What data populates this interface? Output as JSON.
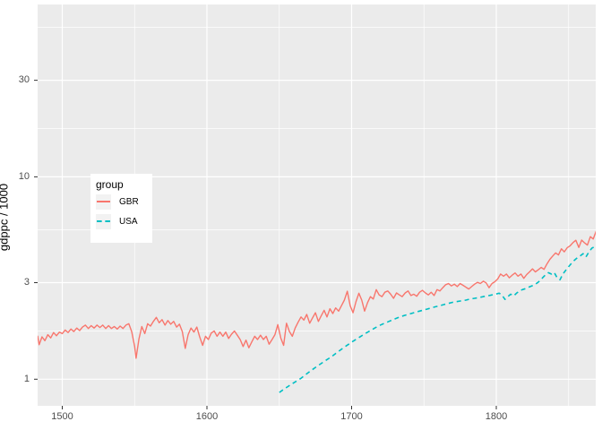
{
  "figure": {
    "background": "#FFFFFF",
    "panel_background": "#EBEBEB",
    "gridline_color": "#FFFFFF",
    "tick_mark_color": "#333333",
    "tick_label_color": "#4D4D4D"
  },
  "chart_data": {
    "type": "line",
    "title": "",
    "xlabel": "",
    "ylabel": "gdppc / 1000",
    "y_scale": "log10",
    "x_ticks": [
      1500,
      1600,
      1700,
      1800
    ],
    "x_tick_labels": [
      "1500",
      "1600",
      "1700",
      "1800"
    ],
    "x_minor_ticks": [
      1550,
      1650,
      1750,
      1850
    ],
    "y_ticks": [
      1,
      3,
      10,
      30
    ],
    "y_tick_labels": [
      "1",
      "3",
      "10",
      "30"
    ],
    "y_minor_ticks": [
      1.73,
      5.48,
      17.3,
      54.8
    ],
    "x_range_shown": [
      1483,
      1869
    ],
    "y_range_shown": [
      0.72,
      72
    ],
    "grid": true,
    "legend": {
      "title": "group",
      "position": "inside-upper-left",
      "entries": [
        {
          "label": "GBR",
          "color": "#F8766D",
          "linetype": "solid"
        },
        {
          "label": "USA",
          "color": "#00BFC4",
          "linetype": "dashed"
        }
      ]
    },
    "series": [
      {
        "name": "GBR",
        "color": "#F8766D",
        "linetype": "solid",
        "points": [
          [
            1483,
            1.64
          ],
          [
            1484,
            1.48
          ],
          [
            1486,
            1.62
          ],
          [
            1488,
            1.55
          ],
          [
            1490,
            1.66
          ],
          [
            1492,
            1.6
          ],
          [
            1494,
            1.7
          ],
          [
            1496,
            1.64
          ],
          [
            1498,
            1.71
          ],
          [
            1500,
            1.68
          ],
          [
            1502,
            1.75
          ],
          [
            1504,
            1.7
          ],
          [
            1506,
            1.77
          ],
          [
            1508,
            1.72
          ],
          [
            1510,
            1.79
          ],
          [
            1512,
            1.74
          ],
          [
            1514,
            1.81
          ],
          [
            1516,
            1.85
          ],
          [
            1518,
            1.78
          ],
          [
            1520,
            1.84
          ],
          [
            1522,
            1.79
          ],
          [
            1524,
            1.85
          ],
          [
            1526,
            1.8
          ],
          [
            1528,
            1.85
          ],
          [
            1530,
            1.78
          ],
          [
            1532,
            1.84
          ],
          [
            1534,
            1.78
          ],
          [
            1536,
            1.82
          ],
          [
            1538,
            1.77
          ],
          [
            1540,
            1.83
          ],
          [
            1542,
            1.78
          ],
          [
            1544,
            1.85
          ],
          [
            1546,
            1.88
          ],
          [
            1548,
            1.72
          ],
          [
            1550,
            1.45
          ],
          [
            1551,
            1.27
          ],
          [
            1553,
            1.58
          ],
          [
            1555,
            1.82
          ],
          [
            1557,
            1.68
          ],
          [
            1559,
            1.88
          ],
          [
            1561,
            1.83
          ],
          [
            1563,
            1.93
          ],
          [
            1565,
            2.02
          ],
          [
            1567,
            1.9
          ],
          [
            1569,
            1.97
          ],
          [
            1571,
            1.85
          ],
          [
            1573,
            1.95
          ],
          [
            1575,
            1.87
          ],
          [
            1577,
            1.93
          ],
          [
            1579,
            1.81
          ],
          [
            1581,
            1.87
          ],
          [
            1583,
            1.72
          ],
          [
            1585,
            1.42
          ],
          [
            1587,
            1.66
          ],
          [
            1589,
            1.79
          ],
          [
            1591,
            1.71
          ],
          [
            1593,
            1.81
          ],
          [
            1595,
            1.62
          ],
          [
            1597,
            1.47
          ],
          [
            1599,
            1.63
          ],
          [
            1601,
            1.57
          ],
          [
            1603,
            1.69
          ],
          [
            1605,
            1.73
          ],
          [
            1607,
            1.63
          ],
          [
            1609,
            1.71
          ],
          [
            1611,
            1.63
          ],
          [
            1613,
            1.71
          ],
          [
            1615,
            1.59
          ],
          [
            1617,
            1.67
          ],
          [
            1619,
            1.73
          ],
          [
            1621,
            1.65
          ],
          [
            1623,
            1.57
          ],
          [
            1625,
            1.45
          ],
          [
            1627,
            1.56
          ],
          [
            1629,
            1.43
          ],
          [
            1631,
            1.53
          ],
          [
            1633,
            1.63
          ],
          [
            1635,
            1.57
          ],
          [
            1637,
            1.65
          ],
          [
            1639,
            1.57
          ],
          [
            1641,
            1.63
          ],
          [
            1643,
            1.49
          ],
          [
            1645,
            1.57
          ],
          [
            1647,
            1.66
          ],
          [
            1649,
            1.86
          ],
          [
            1651,
            1.6
          ],
          [
            1653,
            1.47
          ],
          [
            1655,
            1.89
          ],
          [
            1657,
            1.72
          ],
          [
            1659,
            1.63
          ],
          [
            1661,
            1.79
          ],
          [
            1663,
            1.91
          ],
          [
            1665,
            2.03
          ],
          [
            1667,
            1.96
          ],
          [
            1669,
            2.09
          ],
          [
            1671,
            1.89
          ],
          [
            1673,
            2.01
          ],
          [
            1675,
            2.13
          ],
          [
            1677,
            1.93
          ],
          [
            1679,
            2.06
          ],
          [
            1681,
            2.19
          ],
          [
            1683,
            2.03
          ],
          [
            1685,
            2.23
          ],
          [
            1687,
            2.11
          ],
          [
            1689,
            2.25
          ],
          [
            1691,
            2.17
          ],
          [
            1693,
            2.31
          ],
          [
            1695,
            2.46
          ],
          [
            1697,
            2.72
          ],
          [
            1699,
            2.31
          ],
          [
            1701,
            2.13
          ],
          [
            1703,
            2.41
          ],
          [
            1705,
            2.66
          ],
          [
            1707,
            2.46
          ],
          [
            1709,
            2.17
          ],
          [
            1711,
            2.39
          ],
          [
            1713,
            2.56
          ],
          [
            1715,
            2.49
          ],
          [
            1717,
            2.77
          ],
          [
            1719,
            2.61
          ],
          [
            1721,
            2.56
          ],
          [
            1723,
            2.69
          ],
          [
            1725,
            2.73
          ],
          [
            1727,
            2.63
          ],
          [
            1729,
            2.51
          ],
          [
            1731,
            2.67
          ],
          [
            1733,
            2.61
          ],
          [
            1735,
            2.56
          ],
          [
            1737,
            2.67
          ],
          [
            1739,
            2.73
          ],
          [
            1741,
            2.59
          ],
          [
            1743,
            2.63
          ],
          [
            1745,
            2.57
          ],
          [
            1747,
            2.69
          ],
          [
            1749,
            2.75
          ],
          [
            1751,
            2.67
          ],
          [
            1753,
            2.61
          ],
          [
            1755,
            2.69
          ],
          [
            1757,
            2.59
          ],
          [
            1759,
            2.77
          ],
          [
            1761,
            2.73
          ],
          [
            1763,
            2.83
          ],
          [
            1765,
            2.93
          ],
          [
            1767,
            2.97
          ],
          [
            1769,
            2.89
          ],
          [
            1771,
            2.95
          ],
          [
            1773,
            2.87
          ],
          [
            1775,
            2.97
          ],
          [
            1777,
            2.91
          ],
          [
            1779,
            2.85
          ],
          [
            1781,
            2.79
          ],
          [
            1783,
            2.87
          ],
          [
            1785,
            2.95
          ],
          [
            1787,
            3.01
          ],
          [
            1789,
            2.97
          ],
          [
            1791,
            3.05
          ],
          [
            1793,
            2.99
          ],
          [
            1795,
            2.83
          ],
          [
            1797,
            2.97
          ],
          [
            1799,
            3.03
          ],
          [
            1801,
            3.13
          ],
          [
            1803,
            3.31
          ],
          [
            1805,
            3.23
          ],
          [
            1807,
            3.31
          ],
          [
            1809,
            3.17
          ],
          [
            1811,
            3.27
          ],
          [
            1813,
            3.35
          ],
          [
            1815,
            3.23
          ],
          [
            1817,
            3.31
          ],
          [
            1819,
            3.15
          ],
          [
            1821,
            3.29
          ],
          [
            1823,
            3.39
          ],
          [
            1825,
            3.51
          ],
          [
            1827,
            3.39
          ],
          [
            1829,
            3.47
          ],
          [
            1831,
            3.57
          ],
          [
            1833,
            3.49
          ],
          [
            1835,
            3.71
          ],
          [
            1837,
            3.91
          ],
          [
            1839,
            4.06
          ],
          [
            1841,
            4.21
          ],
          [
            1843,
            4.11
          ],
          [
            1845,
            4.41
          ],
          [
            1847,
            4.26
          ],
          [
            1849,
            4.46
          ],
          [
            1851,
            4.56
          ],
          [
            1853,
            4.73
          ],
          [
            1855,
            4.86
          ],
          [
            1857,
            4.48
          ],
          [
            1859,
            4.87
          ],
          [
            1861,
            4.72
          ],
          [
            1863,
            4.6
          ],
          [
            1865,
            5.06
          ],
          [
            1867,
            4.93
          ],
          [
            1869,
            5.38
          ],
          [
            1870,
            5.52
          ]
        ]
      },
      {
        "name": "USA",
        "color": "#00BFC4",
        "linetype": "dashed",
        "points": [
          [
            1650,
            0.86
          ],
          [
            1653,
            0.89
          ],
          [
            1656,
            0.92
          ],
          [
            1659,
            0.95
          ],
          [
            1662,
            0.98
          ],
          [
            1665,
            1.01
          ],
          [
            1668,
            1.05
          ],
          [
            1671,
            1.09
          ],
          [
            1674,
            1.13
          ],
          [
            1677,
            1.17
          ],
          [
            1680,
            1.21
          ],
          [
            1683,
            1.25
          ],
          [
            1686,
            1.29
          ],
          [
            1689,
            1.34
          ],
          [
            1692,
            1.39
          ],
          [
            1695,
            1.44
          ],
          [
            1698,
            1.49
          ],
          [
            1701,
            1.54
          ],
          [
            1704,
            1.59
          ],
          [
            1707,
            1.64
          ],
          [
            1710,
            1.69
          ],
          [
            1713,
            1.74
          ],
          [
            1716,
            1.79
          ],
          [
            1719,
            1.84
          ],
          [
            1722,
            1.88
          ],
          [
            1725,
            1.92
          ],
          [
            1728,
            1.96
          ],
          [
            1731,
            2.0
          ],
          [
            1734,
            2.04
          ],
          [
            1737,
            2.07
          ],
          [
            1740,
            2.1
          ],
          [
            1743,
            2.13
          ],
          [
            1746,
            2.16
          ],
          [
            1749,
            2.19
          ],
          [
            1752,
            2.22
          ],
          [
            1755,
            2.25
          ],
          [
            1758,
            2.28
          ],
          [
            1761,
            2.31
          ],
          [
            1764,
            2.34
          ],
          [
            1767,
            2.37
          ],
          [
            1770,
            2.4
          ],
          [
            1773,
            2.42
          ],
          [
            1776,
            2.44
          ],
          [
            1779,
            2.46
          ],
          [
            1782,
            2.49
          ],
          [
            1785,
            2.51
          ],
          [
            1788,
            2.53
          ],
          [
            1791,
            2.56
          ],
          [
            1794,
            2.58
          ],
          [
            1797,
            2.61
          ],
          [
            1800,
            2.64
          ],
          [
            1802,
            2.66
          ],
          [
            1804,
            2.6
          ],
          [
            1806,
            2.48
          ],
          [
            1808,
            2.56
          ],
          [
            1810,
            2.63
          ],
          [
            1812,
            2.58
          ],
          [
            1814,
            2.66
          ],
          [
            1816,
            2.73
          ],
          [
            1818,
            2.77
          ],
          [
            1820,
            2.8
          ],
          [
            1822,
            2.84
          ],
          [
            1824,
            2.88
          ],
          [
            1826,
            2.92
          ],
          [
            1828,
            2.98
          ],
          [
            1830,
            3.06
          ],
          [
            1832,
            3.17
          ],
          [
            1834,
            3.28
          ],
          [
            1836,
            3.36
          ],
          [
            1838,
            3.31
          ],
          [
            1840,
            3.37
          ],
          [
            1842,
            3.18
          ],
          [
            1844,
            3.1
          ],
          [
            1846,
            3.31
          ],
          [
            1848,
            3.45
          ],
          [
            1850,
            3.6
          ],
          [
            1852,
            3.74
          ],
          [
            1854,
            3.87
          ],
          [
            1856,
            3.98
          ],
          [
            1858,
            4.07
          ],
          [
            1860,
            4.17
          ],
          [
            1862,
            4.02
          ],
          [
            1864,
            4.25
          ],
          [
            1866,
            4.44
          ],
          [
            1868,
            4.52
          ],
          [
            1870,
            4.66
          ]
        ]
      }
    ]
  }
}
